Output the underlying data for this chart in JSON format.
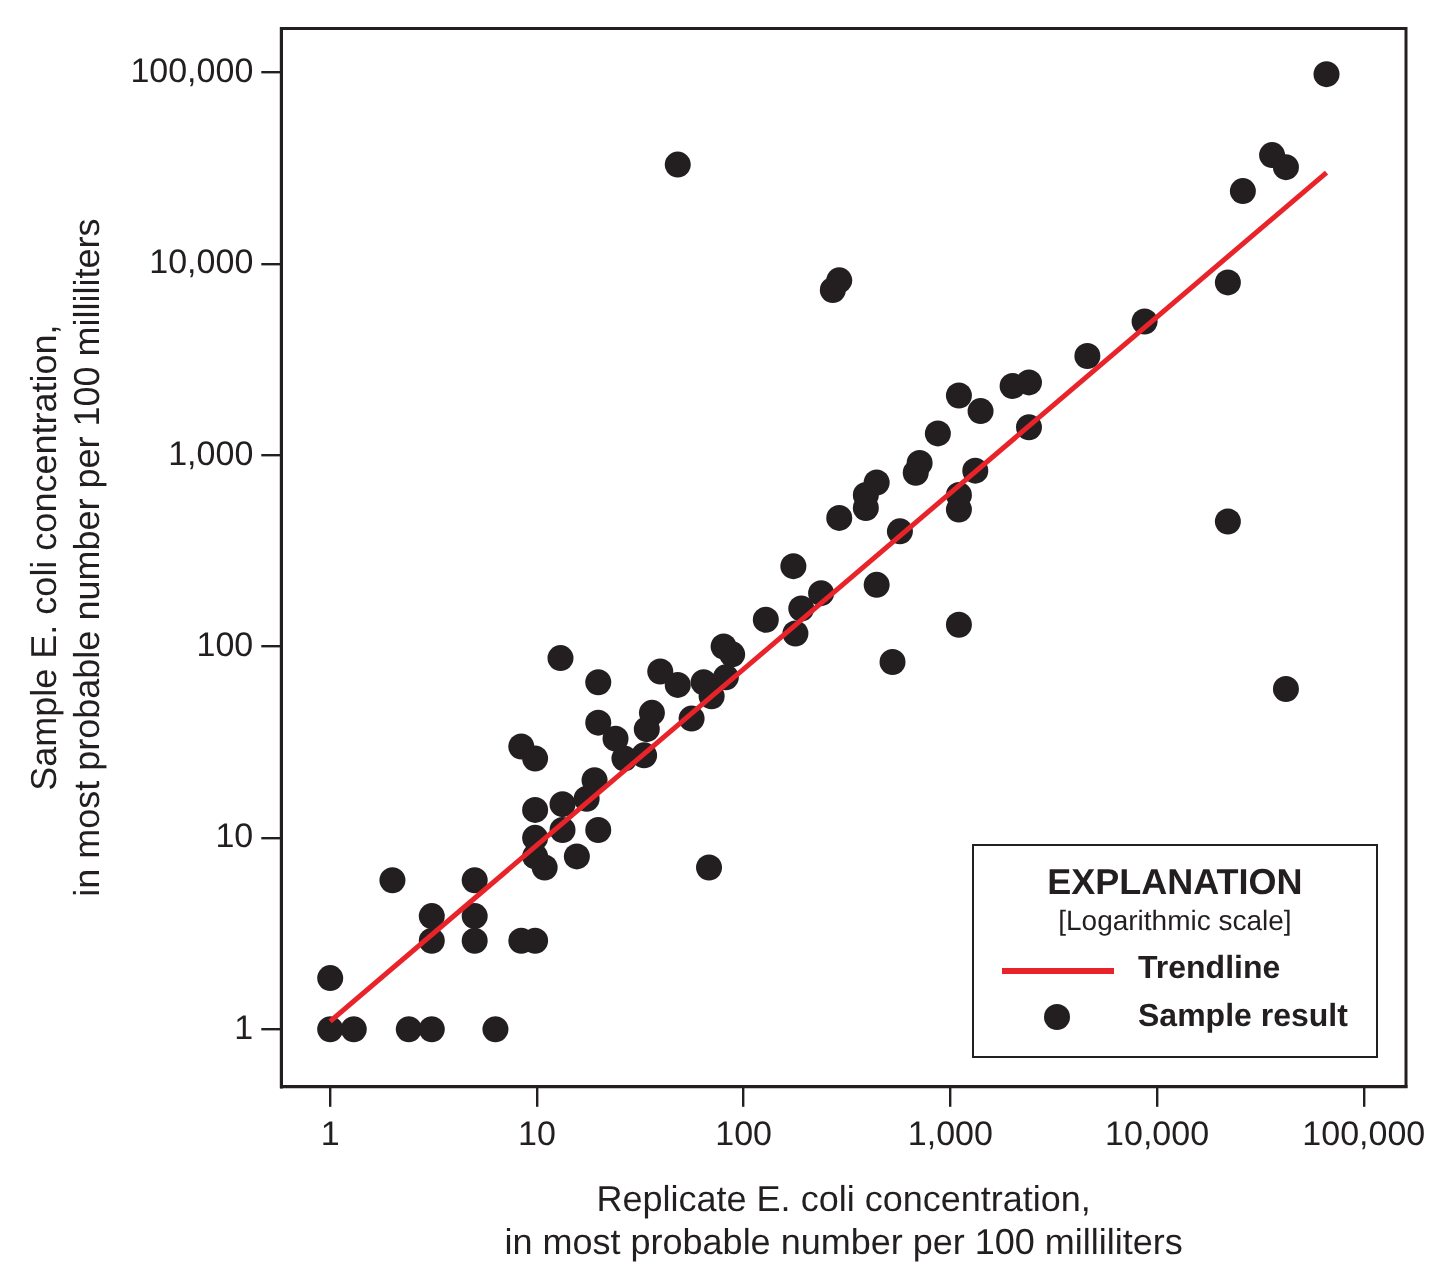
{
  "chart_data": {
    "type": "scatter",
    "xlabel": "Replicate E. coli concentration, in most probable number per 100 milliliters",
    "ylabel": "Sample E. coli concentration, in most probable number per 100 milliliters",
    "legend_title": "EXPLANATION",
    "annotations": [
      "[Logarithmic scale]"
    ],
    "log": "xy",
    "grid": false,
    "legend": "bottom right",
    "xlim": [
      0.58,
      160000
    ],
    "ylim": [
      0.5,
      170000
    ],
    "xticks": [
      1,
      10,
      100,
      {
        "value": 1000,
        "label": "1,000"
      },
      {
        "value": 10000,
        "label": "10,000"
      },
      {
        "value": 100000,
        "label": "100,000"
      }
    ],
    "yticks": [
      1,
      10,
      100,
      {
        "value": 1000,
        "label": "1,000"
      },
      {
        "value": 10000,
        "label": "10,000"
      },
      {
        "value": 100000,
        "label": "100,000"
      }
    ],
    "series": [
      {
        "name": "Trendline",
        "type": "line",
        "color": "#e8232a",
        "marker": "none",
        "line_style": "solid",
        "x": [
          1,
          66000
        ],
        "values": [
          1.1,
          30000
        ]
      },
      {
        "name": "Sample result",
        "type": "scatter",
        "color": "#231f20",
        "marker": "circle",
        "x": [
          1,
          1,
          1.3,
          2.4,
          3.1,
          6.3,
          2.0,
          3.1,
          3.1,
          5.0,
          5.0,
          5.0,
          8.4,
          9.8,
          8.4,
          9.8,
          9.8,
          9.8,
          9.8,
          10.9,
          13,
          13.3,
          13.3,
          15.6,
          17.4,
          19,
          19.8,
          19.8,
          19.8,
          24,
          26.5,
          33,
          36,
          34,
          39.5,
          48,
          56,
          64,
          70,
          80,
          88,
          82,
          68,
          128,
          174,
          178,
          190,
          237,
          290,
          525,
          48,
          270,
          290,
          66000,
          36000,
          42000,
          26000,
          22000,
          8700,
          4600,
          2400,
          2000,
          2400,
          1100,
          1400,
          870,
          710,
          680,
          440,
          390,
          390,
          570,
          440,
          1100,
          1100,
          1320,
          1100,
          22000,
          42000
        ],
        "values": [
          1.85,
          1,
          1,
          1,
          1,
          1,
          6,
          3.9,
          2.9,
          6,
          3.9,
          2.9,
          2.9,
          2.9,
          30,
          26,
          14,
          10,
          8,
          7,
          87,
          15,
          11,
          8,
          16,
          20,
          65,
          40,
          11,
          33,
          26,
          27,
          45,
          37,
          74,
          63,
          42,
          65,
          55,
          100,
          91,
          69,
          7,
          138,
          263,
          117,
          158,
          190,
          470,
          83,
          33000,
          7300,
          8200,
          98000,
          37000,
          32000,
          24000,
          8000,
          5000,
          3300,
          2400,
          2300,
          1400,
          2050,
          1700,
          1300,
          910,
          810,
          720,
          620,
          530,
          400,
          210,
          620,
          520,
          830,
          130,
          450,
          60
        ]
      }
    ]
  }
}
